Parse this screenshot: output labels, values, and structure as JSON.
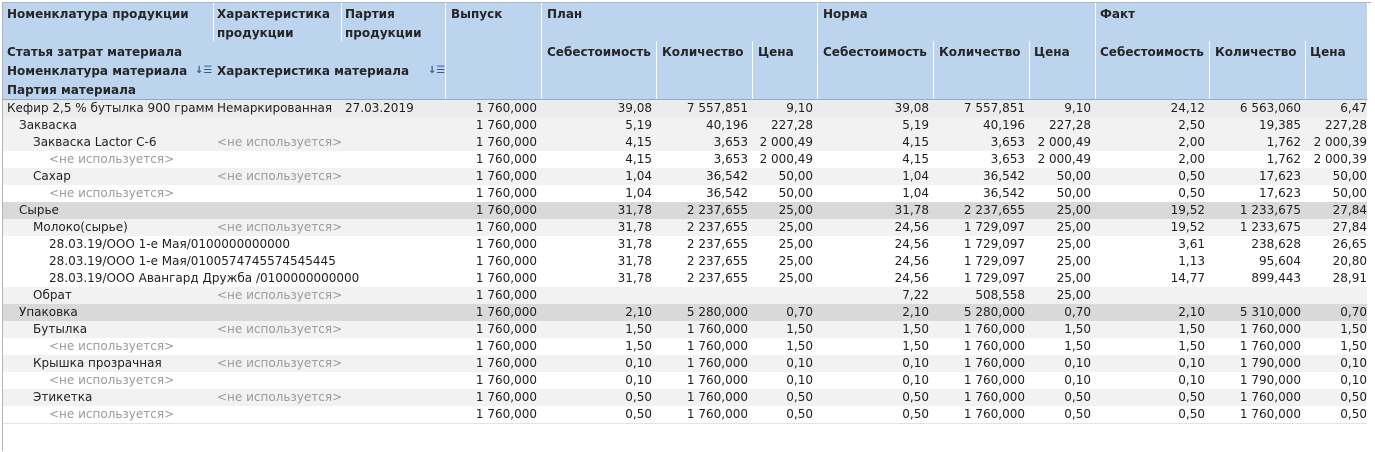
{
  "header": {
    "col_product": "Номенклатура продукции",
    "col_char_product_1": "Характеристика",
    "col_char_product_2": "продукции",
    "col_batch_product_1": "Партия",
    "col_batch_product_2": "продукции",
    "col_output": "Выпуск",
    "group_plan": "План",
    "group_norm": "Норма",
    "group_fact": "Факт",
    "sub_cost": "Себестоимость",
    "sub_qty": "Количество",
    "sub_price": "Цена",
    "cost_item": "Статья затрат материала",
    "material": "Номенклатура материала",
    "material_char": "Характеристика материала",
    "material_batch": "Партия материала"
  },
  "rows": [
    {
      "name": "Кефир 2,5 % бутылка 900 грамм",
      "char": "Немаркированная",
      "batch": "27.03.2019",
      "out": "1 760,000",
      "pc": "39,08",
      "pq": "7 557,851",
      "pp": "9,10",
      "nc": "39,08",
      "nq": "7 557,851",
      "np": "9,10",
      "fc": "24,12",
      "fq": "6 563,060",
      "fp": "6,47"
    },
    {
      "name": "Закваска",
      "char": "",
      "batch": "",
      "out": "1 760,000",
      "pc": "5,19",
      "pq": "40,196",
      "pp": "227,28",
      "nc": "5,19",
      "nq": "40,196",
      "np": "227,28",
      "fc": "2,50",
      "fq": "19,385",
      "fp": "227,28"
    },
    {
      "name": "Закваска Lactor C-6",
      "char": "<не используется>",
      "batch": "",
      "out": "1 760,000",
      "pc": "4,15",
      "pq": "3,653",
      "pp": "2 000,49",
      "nc": "4,15",
      "nq": "3,653",
      "np": "2 000,49",
      "fc": "2,00",
      "fq": "1,762",
      "fp": "2 000,39"
    },
    {
      "name": "<не используется>",
      "char": "",
      "batch": "",
      "out": "1 760,000",
      "pc": "4,15",
      "pq": "3,653",
      "pp": "2 000,49",
      "nc": "4,15",
      "nq": "3,653",
      "np": "2 000,49",
      "fc": "2,00",
      "fq": "1,762",
      "fp": "2 000,39"
    },
    {
      "name": "Сахар",
      "char": "<не используется>",
      "batch": "",
      "out": "1 760,000",
      "pc": "1,04",
      "pq": "36,542",
      "pp": "50,00",
      "nc": "1,04",
      "nq": "36,542",
      "np": "50,00",
      "fc": "0,50",
      "fq": "17,623",
      "fp": "50,00"
    },
    {
      "name": "<не используется>",
      "char": "",
      "batch": "",
      "out": "1 760,000",
      "pc": "1,04",
      "pq": "36,542",
      "pp": "50,00",
      "nc": "1,04",
      "nq": "36,542",
      "np": "50,00",
      "fc": "0,50",
      "fq": "17,623",
      "fp": "50,00"
    },
    {
      "name": "Сырье",
      "char": "",
      "batch": "",
      "out": "1 760,000",
      "pc": "31,78",
      "pq": "2 237,655",
      "pp": "25,00",
      "nc": "31,78",
      "nq": "2 237,655",
      "np": "25,00",
      "fc": "19,52",
      "fq": "1 233,675",
      "fp": "27,84"
    },
    {
      "name": "Молоко(сырье)",
      "char": "<не используется>",
      "batch": "",
      "out": "1 760,000",
      "pc": "31,78",
      "pq": "2 237,655",
      "pp": "25,00",
      "nc": "24,56",
      "nq": "1 729,097",
      "np": "25,00",
      "fc": "19,52",
      "fq": "1 233,675",
      "fp": "27,84"
    },
    {
      "name": "28.03.19/ООО 1-е Мая/0100000000000",
      "char": "",
      "batch": "",
      "out": "1 760,000",
      "pc": "31,78",
      "pq": "2 237,655",
      "pp": "25,00",
      "nc": "24,56",
      "nq": "1 729,097",
      "np": "25,00",
      "fc": "3,61",
      "fq": "238,628",
      "fp": "26,65"
    },
    {
      "name": "28.03.19/ООО 1-е Мая/0100574745574545445",
      "char": "",
      "batch": "",
      "out": "1 760,000",
      "pc": "31,78",
      "pq": "2 237,655",
      "pp": "25,00",
      "nc": "24,56",
      "nq": "1 729,097",
      "np": "25,00",
      "fc": "1,13",
      "fq": "95,604",
      "fp": "20,80"
    },
    {
      "name": "28.03.19/ООО Авангард Дружба  /0100000000000",
      "char": "",
      "batch": "",
      "out": "1 760,000",
      "pc": "31,78",
      "pq": "2 237,655",
      "pp": "25,00",
      "nc": "24,56",
      "nq": "1 729,097",
      "np": "25,00",
      "fc": "14,77",
      "fq": "899,443",
      "fp": "28,91"
    },
    {
      "name": "Обрат",
      "char": "<не используется>",
      "batch": "",
      "out": "1 760,000",
      "pc": "",
      "pq": "",
      "pp": "",
      "nc": "7,22",
      "nq": "508,558",
      "np": "25,00",
      "fc": "",
      "fq": "",
      "fp": ""
    },
    {
      "name": "Упаковка",
      "char": "",
      "batch": "",
      "out": "1 760,000",
      "pc": "2,10",
      "pq": "5 280,000",
      "pp": "0,70",
      "nc": "2,10",
      "nq": "5 280,000",
      "np": "0,70",
      "fc": "2,10",
      "fq": "5 310,000",
      "fp": "0,70"
    },
    {
      "name": "Бутылка",
      "char": "<не используется>",
      "batch": "",
      "out": "1 760,000",
      "pc": "1,50",
      "pq": "1 760,000",
      "pp": "1,50",
      "nc": "1,50",
      "nq": "1 760,000",
      "np": "1,50",
      "fc": "1,50",
      "fq": "1 760,000",
      "fp": "1,50"
    },
    {
      "name": "<не используется>",
      "char": "",
      "batch": "",
      "out": "1 760,000",
      "pc": "1,50",
      "pq": "1 760,000",
      "pp": "1,50",
      "nc": "1,50",
      "nq": "1 760,000",
      "np": "1,50",
      "fc": "1,50",
      "fq": "1 760,000",
      "fp": "1,50"
    },
    {
      "name": "Крышка прозрачная",
      "char": "<не используется>",
      "batch": "",
      "out": "1 760,000",
      "pc": "0,10",
      "pq": "1 760,000",
      "pp": "0,10",
      "nc": "0,10",
      "nq": "1 760,000",
      "np": "0,10",
      "fc": "0,10",
      "fq": "1 790,000",
      "fp": "0,10"
    },
    {
      "name": "<не используется>",
      "char": "",
      "batch": "",
      "out": "1 760,000",
      "pc": "0,10",
      "pq": "1 760,000",
      "pp": "0,10",
      "nc": "0,10",
      "nq": "1 760,000",
      "np": "0,10",
      "fc": "0,10",
      "fq": "1 790,000",
      "fp": "0,10"
    },
    {
      "name": "Этикетка",
      "char": "<не используется>",
      "batch": "",
      "out": "1 760,000",
      "pc": "0,50",
      "pq": "1 760,000",
      "pp": "0,50",
      "nc": "0,50",
      "nq": "1 760,000",
      "np": "0,50",
      "fc": "0,50",
      "fq": "1 760,000",
      "fp": "0,50"
    },
    {
      "name": "<не используется>",
      "char": "",
      "batch": "",
      "out": "1 760,000",
      "pc": "0,50",
      "pq": "1 760,000",
      "pp": "0,50",
      "nc": "0,50",
      "nq": "1 760,000",
      "np": "0,50",
      "fc": "0,50",
      "fq": "1 760,000",
      "fp": "0,50"
    }
  ]
}
